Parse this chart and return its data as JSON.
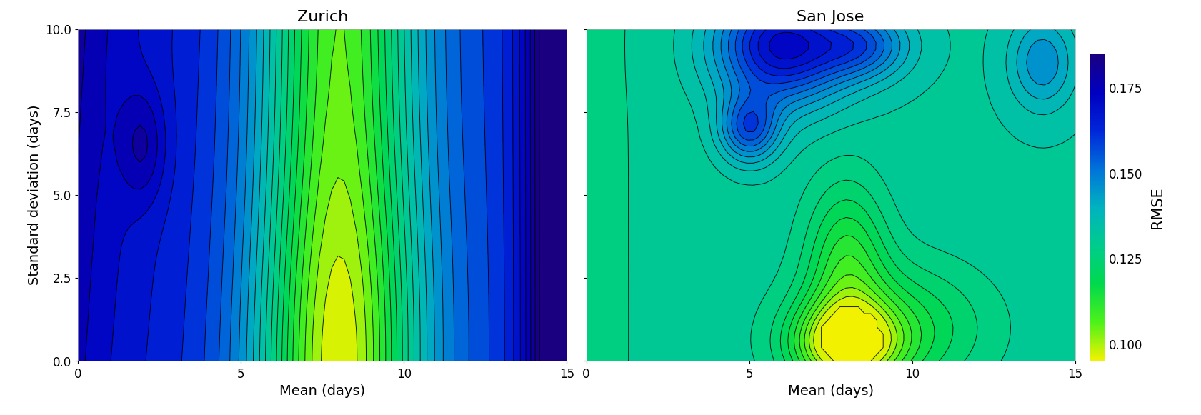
{
  "title_zurich": "Zurich",
  "title_sanjose": "San Jose",
  "xlabel": "Mean (days)",
  "ylabel": "Standard deviation (days)",
  "colorbar_label": "RMSE",
  "colorbar_ticks": [
    0.1,
    0.125,
    0.15,
    0.175
  ],
  "vmin": 0.095,
  "vmax": 0.185,
  "x_range": [
    0,
    15
  ],
  "y_range": [
    0,
    10
  ],
  "xticks": [
    0,
    5,
    10,
    15
  ],
  "yticks": [
    0.0,
    2.5,
    5.0,
    7.5,
    10.0
  ],
  "background_color": "#ffffff",
  "figsize_inches": [
    42.7,
    14.76
  ],
  "dpi": 100
}
